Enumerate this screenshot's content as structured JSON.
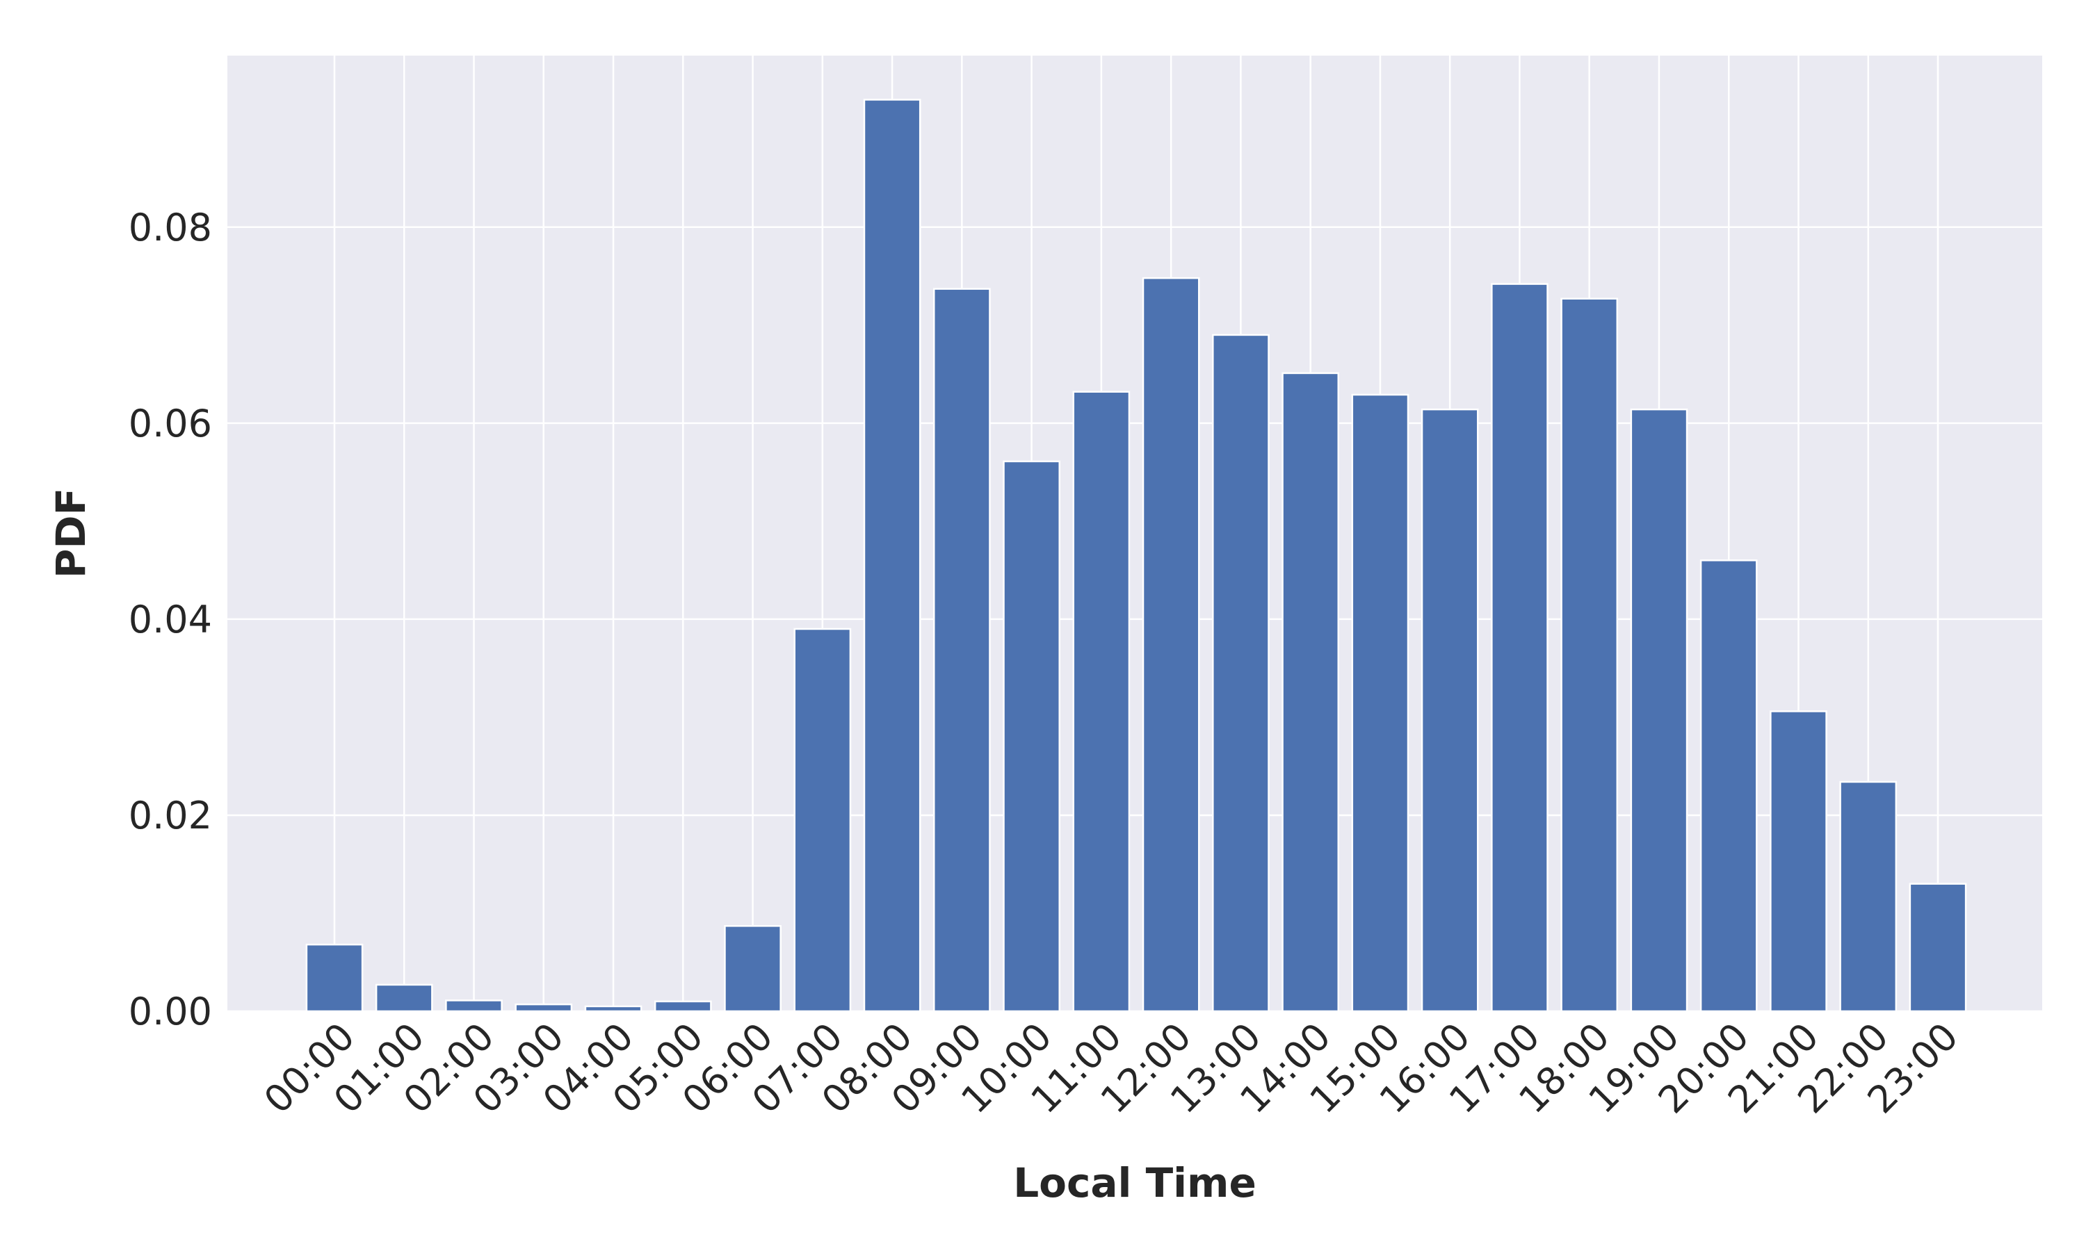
{
  "chart_data": {
    "type": "bar",
    "title": "",
    "xlabel": "Local Time",
    "ylabel": "PDF",
    "categories": [
      "00:00",
      "01:00",
      "02:00",
      "03:00",
      "04:00",
      "05:00",
      "06:00",
      "07:00",
      "08:00",
      "09:00",
      "10:00",
      "11:00",
      "12:00",
      "13:00",
      "14:00",
      "15:00",
      "16:00",
      "17:00",
      "18:00",
      "19:00",
      "20:00",
      "21:00",
      "22:00",
      "23:00"
    ],
    "values": [
      0.0068,
      0.0027,
      0.0011,
      0.0007,
      0.0005,
      0.001,
      0.0087,
      0.039,
      0.093,
      0.0737,
      0.0561,
      0.0632,
      0.0748,
      0.069,
      0.0651,
      0.0629,
      0.0614,
      0.0742,
      0.0727,
      0.0614,
      0.046,
      0.0306,
      0.0234,
      0.013
    ],
    "yticks": [
      0.0,
      0.02,
      0.04,
      0.06,
      0.08
    ],
    "ytick_labels": [
      "0.00",
      "0.02",
      "0.04",
      "0.06",
      "0.08"
    ],
    "ylim": [
      0,
      0.0975
    ],
    "grid": true,
    "colors": {
      "bar": "#4c72b0",
      "background": "#eaeaf2",
      "grid": "#ffffff"
    }
  }
}
